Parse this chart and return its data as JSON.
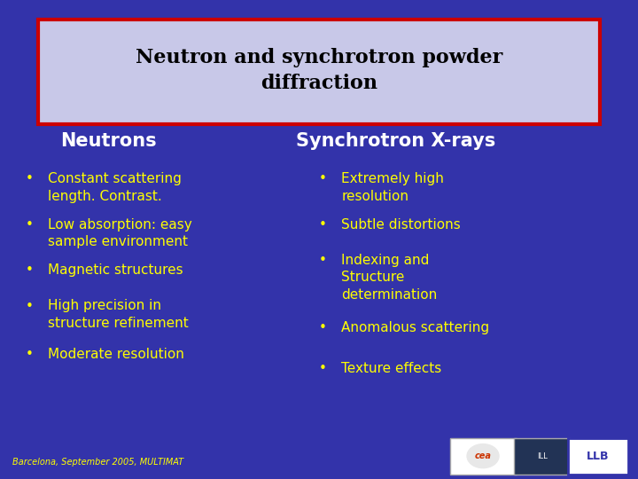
{
  "title": "Neutron and synchrotron powder\ndiffraction",
  "bg_color": "#3333aa",
  "title_box_color": "#c8c8e8",
  "title_box_border": "#cc0000",
  "title_color": "#000000",
  "col1_header": "Neutrons",
  "col2_header": "Synchrotron X-rays",
  "header_color": "#ffffff",
  "bullet_color": "#ffff00",
  "col1_bullets": [
    "Constant scattering\nlength. Contrast.",
    "Low absorption: easy\nsample environment",
    "Magnetic structures",
    "High precision in\nstructure refinement",
    "Moderate resolution"
  ],
  "col2_bullets": [
    "Extremely high\nresolution",
    "Subtle distortions",
    "Indexing and\nStructure\ndetermination",
    "Anomalous scattering",
    "Texture effects"
  ],
  "footer_text": "Barcelona, September 2005, MULTIMAT",
  "footer_color": "#ffff00",
  "title_fontsize": 16,
  "header_fontsize": 15,
  "bullet_fontsize": 11,
  "footer_fontsize": 7
}
